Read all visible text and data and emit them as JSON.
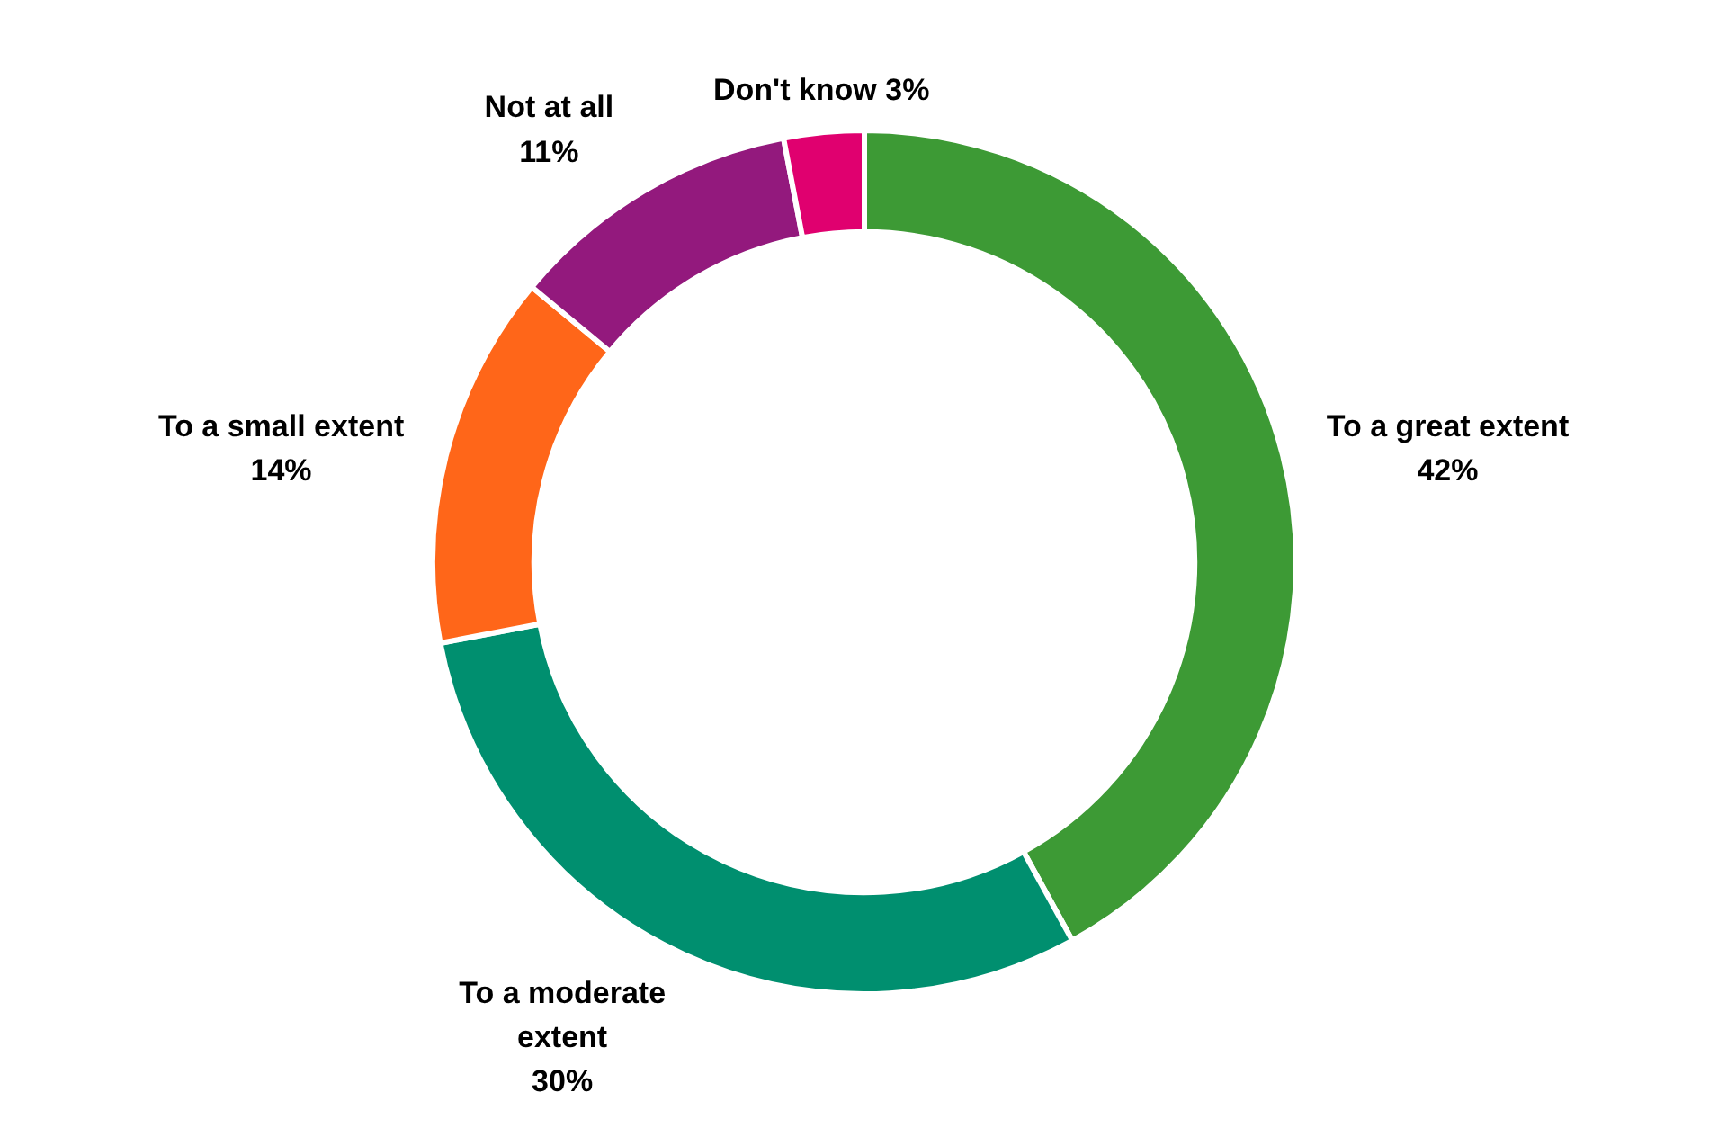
{
  "chart_data": {
    "type": "donut",
    "categories": [
      "To a great extent",
      "To a moderate extent",
      "To a small extent",
      "Not at all",
      "Don't know"
    ],
    "values": [
      42,
      30,
      14,
      11,
      3
    ],
    "colors": [
      "#3d9a35",
      "#008f6f",
      "#ff6619",
      "#93197d",
      "#e0006f"
    ],
    "value_labels": [
      "42%",
      "30%",
      "14%",
      "11%",
      "3%"
    ]
  }
}
